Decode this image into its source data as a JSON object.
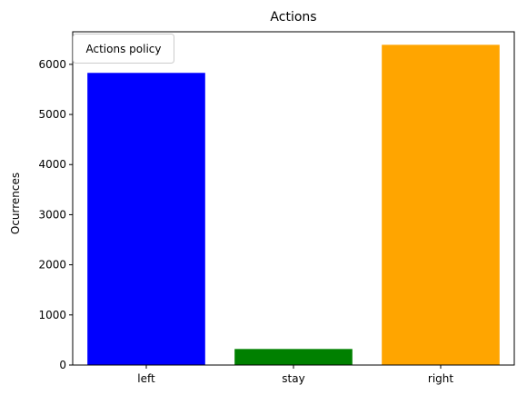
{
  "chart_data": {
    "type": "bar",
    "title": "Actions",
    "xlabel": "",
    "ylabel": "Ocurrences",
    "categories": [
      "left",
      "stay",
      "right"
    ],
    "values": [
      5830,
      320,
      6390
    ],
    "colors": [
      "#0000ff",
      "#008000",
      "#ffa500"
    ],
    "ylim": [
      0,
      6650
    ],
    "yticks": [
      0,
      1000,
      2000,
      3000,
      4000,
      5000,
      6000
    ],
    "grid": false,
    "legend": {
      "title": "Actions policy",
      "placement": "upper-left"
    }
  }
}
